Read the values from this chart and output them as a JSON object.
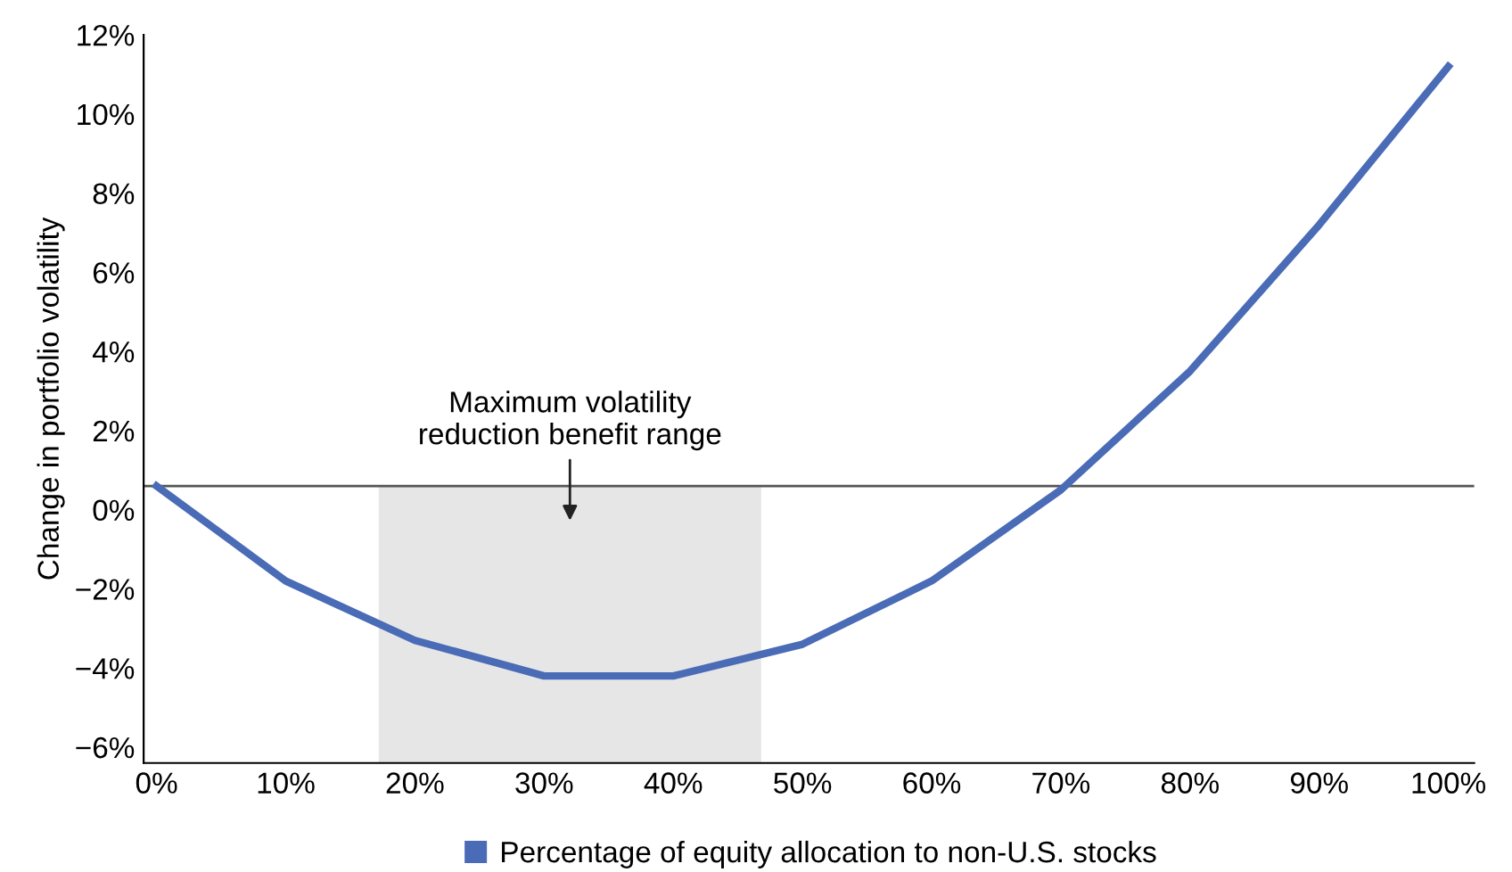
{
  "chart_data": {
    "type": "line",
    "ylabel": "Change in portfolio volatility",
    "x": [
      0,
      10,
      20,
      30,
      40,
      50,
      60,
      70,
      80,
      90,
      100
    ],
    "series": [
      {
        "name": "Percentage of equity allocation to non-U.S. stocks",
        "color": "#4a6bb6",
        "values": [
          0.6,
          -1.8,
          -3.3,
          -4.2,
          -4.2,
          -3.4,
          -1.8,
          0.5,
          3.5,
          7.2,
          11.2
        ]
      }
    ],
    "xlim": [
      -1,
      102
    ],
    "ylim": [
      -6.4,
      12
    ],
    "xticks": [
      {
        "value": 0,
        "label": "0%"
      },
      {
        "value": 10,
        "label": "10%"
      },
      {
        "value": 20,
        "label": "20%"
      },
      {
        "value": 30,
        "label": "30%"
      },
      {
        "value": 40,
        "label": "40%"
      },
      {
        "value": 50,
        "label": "50%"
      },
      {
        "value": 60,
        "label": "60%"
      },
      {
        "value": 70,
        "label": "70%"
      },
      {
        "value": 80,
        "label": "80%"
      },
      {
        "value": 90,
        "label": "90%"
      },
      {
        "value": 100,
        "label": "100%"
      }
    ],
    "yticks": [
      {
        "value": -6,
        "label": "−6%"
      },
      {
        "value": -4,
        "label": "−4%"
      },
      {
        "value": -2,
        "label": "−2%"
      },
      {
        "value": 0,
        "label": "0%"
      },
      {
        "value": 2,
        "label": "2%"
      },
      {
        "value": 4,
        "label": "4%"
      },
      {
        "value": 6,
        "label": "6%"
      },
      {
        "value": 8,
        "label": "8%"
      },
      {
        "value": 10,
        "label": "10%"
      },
      {
        "value": 12,
        "label": "12%"
      }
    ],
    "ref_lines": [
      {
        "axis": "y",
        "value": 0.6,
        "color": "#555555"
      }
    ],
    "bands": [
      {
        "axis": "x",
        "from": 17.2,
        "to": 46.8,
        "color": "#e6e6e6"
      }
    ],
    "annotations": [
      "Maximum volatility\nreduction benefit range"
    ],
    "grid": false,
    "legend": "bottom",
    "marker": "none",
    "line_style": "solid"
  }
}
